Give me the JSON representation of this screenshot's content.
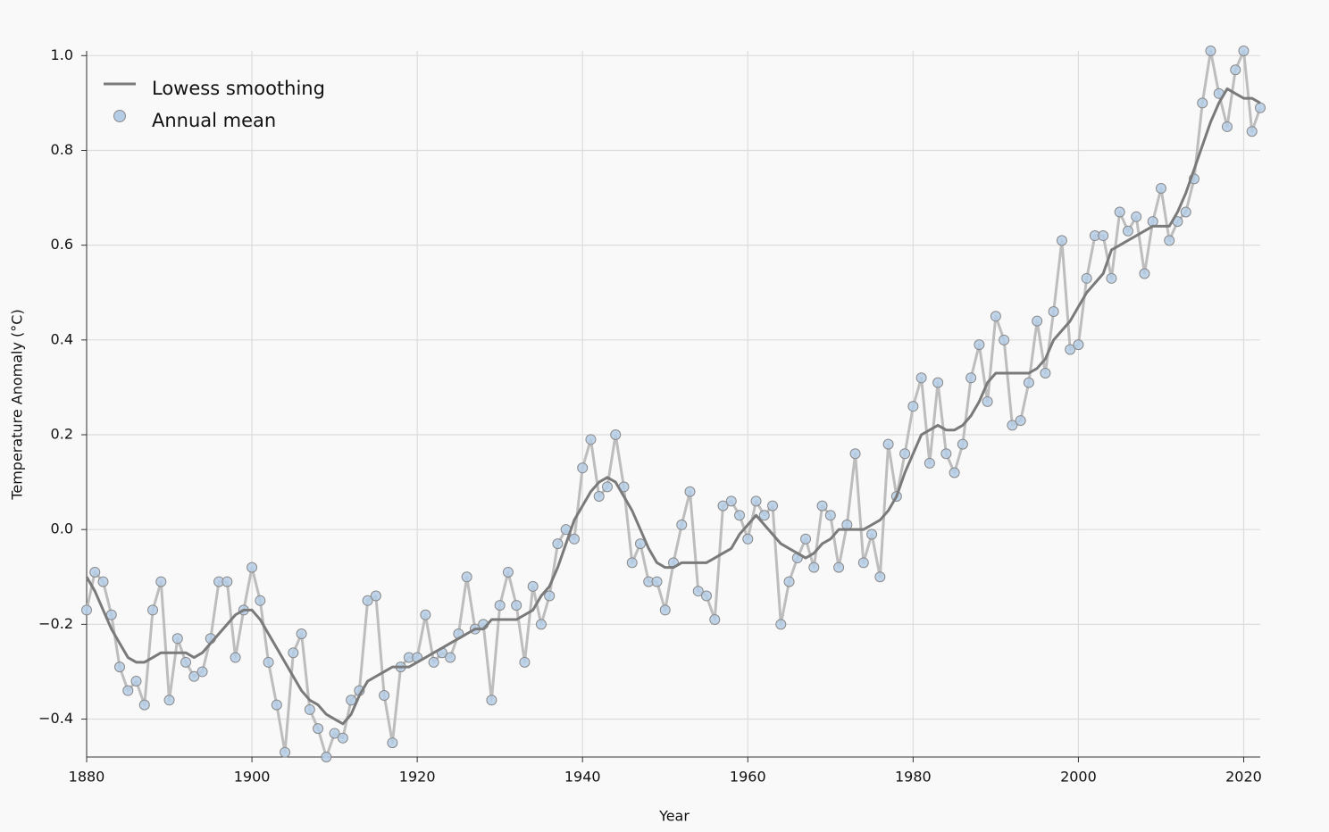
{
  "chart_data": {
    "type": "line",
    "x_label": "Year",
    "y_label": "Temperature Anomaly (°C)",
    "x": [
      1880,
      1881,
      1882,
      1883,
      1884,
      1885,
      1886,
      1887,
      1888,
      1889,
      1890,
      1891,
      1892,
      1893,
      1894,
      1895,
      1896,
      1897,
      1898,
      1899,
      1900,
      1901,
      1902,
      1903,
      1904,
      1905,
      1906,
      1907,
      1908,
      1909,
      1910,
      1911,
      1912,
      1913,
      1914,
      1915,
      1916,
      1917,
      1918,
      1919,
      1920,
      1921,
      1922,
      1923,
      1924,
      1925,
      1926,
      1927,
      1928,
      1929,
      1930,
      1931,
      1932,
      1933,
      1934,
      1935,
      1936,
      1937,
      1938,
      1939,
      1940,
      1941,
      1942,
      1943,
      1944,
      1945,
      1946,
      1947,
      1948,
      1949,
      1950,
      1951,
      1952,
      1953,
      1954,
      1955,
      1956,
      1957,
      1958,
      1959,
      1960,
      1961,
      1962,
      1963,
      1964,
      1965,
      1966,
      1967,
      1968,
      1969,
      1970,
      1971,
      1972,
      1973,
      1974,
      1975,
      1976,
      1977,
      1978,
      1979,
      1980,
      1981,
      1982,
      1983,
      1984,
      1985,
      1986,
      1987,
      1988,
      1989,
      1990,
      1991,
      1992,
      1993,
      1994,
      1995,
      1996,
      1997,
      1998,
      1999,
      2000,
      2001,
      2002,
      2003,
      2004,
      2005,
      2006,
      2007,
      2008,
      2009,
      2010,
      2011,
      2012,
      2013,
      2014,
      2015,
      2016,
      2017,
      2018,
      2019,
      2020,
      2021,
      2022
    ],
    "series": [
      {
        "name": "Lowess smoothing",
        "color": "#7a7a7a",
        "style": "line",
        "values": [
          -0.1,
          -0.13,
          -0.17,
          -0.21,
          -0.24,
          -0.27,
          -0.28,
          -0.28,
          -0.27,
          -0.26,
          -0.26,
          -0.26,
          -0.26,
          -0.27,
          -0.26,
          -0.24,
          -0.22,
          -0.2,
          -0.18,
          -0.17,
          -0.17,
          -0.19,
          -0.22,
          -0.25,
          -0.28,
          -0.31,
          -0.34,
          -0.36,
          -0.37,
          -0.39,
          -0.4,
          -0.41,
          -0.39,
          -0.35,
          -0.32,
          -0.31,
          -0.3,
          -0.29,
          -0.29,
          -0.29,
          -0.28,
          -0.27,
          -0.26,
          -0.25,
          -0.24,
          -0.23,
          -0.22,
          -0.21,
          -0.21,
          -0.19,
          -0.19,
          -0.19,
          -0.19,
          -0.18,
          -0.17,
          -0.14,
          -0.12,
          -0.08,
          -0.03,
          0.02,
          0.05,
          0.08,
          0.1,
          0.11,
          0.1,
          0.07,
          0.04,
          0.0,
          -0.04,
          -0.07,
          -0.08,
          -0.08,
          -0.07,
          -0.07,
          -0.07,
          -0.07,
          -0.06,
          -0.05,
          -0.04,
          -0.01,
          0.01,
          0.03,
          0.01,
          -0.01,
          -0.03,
          -0.04,
          -0.05,
          -0.06,
          -0.05,
          -0.03,
          -0.02,
          0.0,
          0.0,
          0.0,
          0.0,
          0.01,
          0.02,
          0.04,
          0.07,
          0.12,
          0.16,
          0.2,
          0.21,
          0.22,
          0.21,
          0.21,
          0.22,
          0.24,
          0.27,
          0.31,
          0.33,
          0.33,
          0.33,
          0.33,
          0.33,
          0.34,
          0.36,
          0.4,
          0.42,
          0.44,
          0.47,
          0.5,
          0.52,
          0.54,
          0.59,
          0.6,
          0.61,
          0.62,
          0.63,
          0.64,
          0.64,
          0.64,
          0.67,
          0.71,
          0.76,
          0.81,
          0.86,
          0.9,
          0.93,
          0.92,
          0.91,
          0.91,
          0.9
        ]
      },
      {
        "name": "Annual mean",
        "color": "#b5cce6",
        "style": "points",
        "values": [
          -0.17,
          -0.09,
          -0.11,
          -0.18,
          -0.29,
          -0.34,
          -0.32,
          -0.37,
          -0.17,
          -0.11,
          -0.36,
          -0.23,
          -0.28,
          -0.31,
          -0.3,
          -0.23,
          -0.11,
          -0.11,
          -0.27,
          -0.17,
          -0.08,
          -0.15,
          -0.28,
          -0.37,
          -0.47,
          -0.26,
          -0.22,
          -0.38,
          -0.42,
          -0.48,
          -0.43,
          -0.44,
          -0.36,
          -0.34,
          -0.15,
          -0.14,
          -0.35,
          -0.45,
          -0.29,
          -0.27,
          -0.27,
          -0.18,
          -0.28,
          -0.26,
          -0.27,
          -0.22,
          -0.1,
          -0.21,
          -0.2,
          -0.36,
          -0.16,
          -0.09,
          -0.16,
          -0.28,
          -0.12,
          -0.2,
          -0.14,
          -0.03,
          0.0,
          -0.02,
          0.13,
          0.19,
          0.07,
          0.09,
          0.2,
          0.09,
          -0.07,
          -0.03,
          -0.11,
          -0.11,
          -0.17,
          -0.07,
          0.01,
          0.08,
          -0.13,
          -0.14,
          -0.19,
          0.05,
          0.06,
          0.03,
          -0.02,
          0.06,
          0.03,
          0.05,
          -0.2,
          -0.11,
          -0.06,
          -0.02,
          -0.08,
          0.05,
          0.03,
          -0.08,
          0.01,
          0.16,
          -0.07,
          -0.01,
          -0.1,
          0.18,
          0.07,
          0.16,
          0.26,
          0.32,
          0.14,
          0.31,
          0.16,
          0.12,
          0.18,
          0.32,
          0.39,
          0.27,
          0.45,
          0.4,
          0.22,
          0.23,
          0.31,
          0.44,
          0.33,
          0.46,
          0.61,
          0.38,
          0.39,
          0.53,
          0.62,
          0.62,
          0.53,
          0.67,
          0.63,
          0.66,
          0.54,
          0.65,
          0.72,
          0.61,
          0.65,
          0.67,
          0.74,
          0.9,
          1.01,
          0.92,
          0.85,
          0.97,
          1.01,
          0.84,
          0.89
        ]
      }
    ],
    "xlim": [
      1880,
      2022
    ],
    "ylim": [
      -0.48,
      1.01
    ],
    "xticks": [
      1880,
      1900,
      1920,
      1940,
      1960,
      1980,
      2000,
      2020
    ],
    "yticks": [
      {
        "value": -0.4,
        "label": "−0.4"
      },
      {
        "value": -0.2,
        "label": "−0.2"
      },
      {
        "value": 0,
        "label": "0.0"
      },
      0.2,
      0.4,
      0.6,
      0.8,
      {
        "value": 1,
        "label": "1.0"
      }
    ],
    "grid": true,
    "legend": "upper left"
  }
}
